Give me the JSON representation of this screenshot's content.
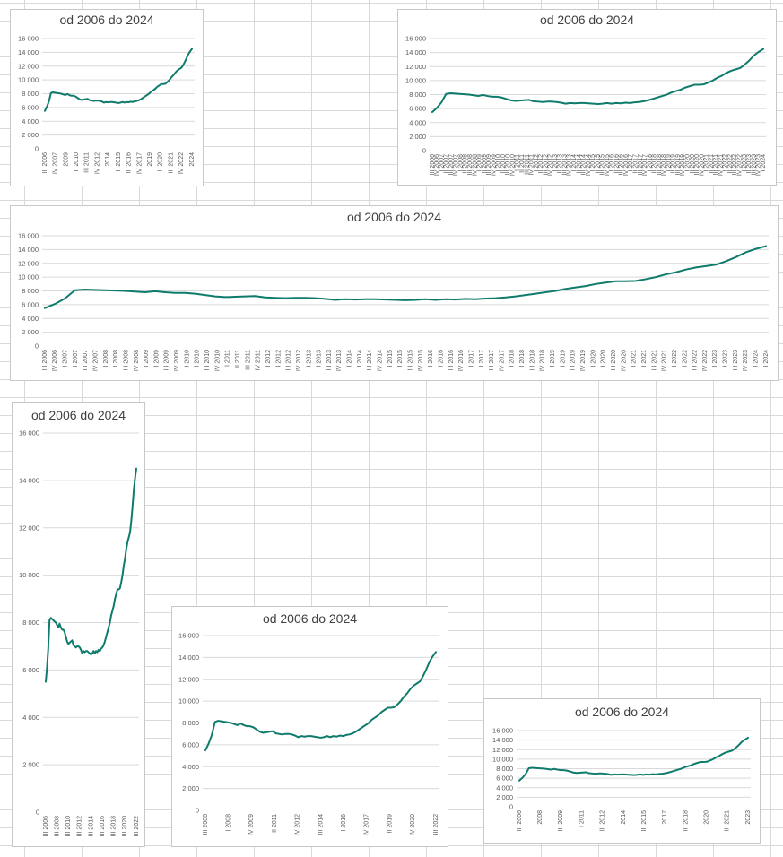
{
  "chart_data": [
    {
      "type": "line",
      "title": "od 2006 do 2024",
      "xlabel": "",
      "ylabel": "",
      "ylim": [
        0,
        16000
      ],
      "yticks": [
        "0",
        "2 000",
        "4 000",
        "6 000",
        "8 000",
        "10 000",
        "12 000",
        "14 000",
        "16 000"
      ],
      "grid": true,
      "x_tick_labels": [
        "III 2006",
        "IV 2007",
        "I 2009",
        "II 2010",
        "III 2011",
        "IV 2012",
        "I 2014",
        "II 2015",
        "III 2016",
        "IV 2017",
        "I 2019",
        "II 2020",
        "III 2021",
        "IV 2022",
        "I 2024"
      ],
      "series_color": "#0f7b6c"
    },
    {
      "type": "line",
      "title": "od 2006 do 2024",
      "xlabel": "",
      "ylabel": "",
      "ylim": [
        0,
        16000
      ],
      "yticks": [
        "0",
        "2 000",
        "4 000",
        "6 000",
        "8 000",
        "10 000",
        "12 000",
        "14 000",
        "16 000"
      ],
      "grid": true,
      "x_tick_labels": [
        "III 2006",
        "IV 2006",
        "I 2007",
        "II 2007",
        "III 2007",
        "IV 2007",
        "I 2008",
        "II 2008",
        "III 2008",
        "IV 2008",
        "I 2009",
        "II 2009",
        "III 2009",
        "IV 2009",
        "I 2010",
        "II 2010",
        "III 2010",
        "IV 2010",
        "I 2011",
        "II 2011",
        "III 2011",
        "IV 2011",
        "I 2012",
        "II 2012",
        "III 2012",
        "IV 2012",
        "I 2013",
        "II 2013",
        "III 2013",
        "IV 2013",
        "I 2014",
        "II 2014",
        "III 2014",
        "IV 2014",
        "I 2015",
        "II 2015",
        "III 2015",
        "IV 2015",
        "I 2016",
        "II 2016",
        "III 2016",
        "IV 2016",
        "I 2017",
        "II 2017",
        "III 2017",
        "IV 2017",
        "I 2018",
        "II 2018",
        "III 2018",
        "IV 2018",
        "I 2019",
        "II 2019",
        "III 2019",
        "IV 2019",
        "I 2020",
        "II 2020",
        "III 2020",
        "IV 2020",
        "I 2021",
        "II 2021",
        "III 2021",
        "IV 2021",
        "I 2022",
        "II 2022",
        "III 2022",
        "IV 2022",
        "I 2023",
        "II 2023",
        "III 2023",
        "IV 2023",
        "I 2024"
      ],
      "series_color": "#0f7b6c"
    },
    {
      "type": "line",
      "title": "od 2006 do 2024",
      "xlabel": "",
      "ylabel": "",
      "ylim": [
        0,
        16000
      ],
      "yticks": [
        "0",
        "2 000",
        "4 000",
        "6 000",
        "8 000",
        "10 000",
        "12 000",
        "14 000",
        "16 000"
      ],
      "grid": true,
      "x_tick_labels": [
        "III 2006",
        "IV 2006",
        "I 2007",
        "II 2007",
        "III 2007",
        "IV 2007",
        "I 2008",
        "II 2008",
        "III 2008",
        "IV 2008",
        "I 2009",
        "II 2009",
        "III 2009",
        "IV 2009",
        "I 2010",
        "II 2010",
        "III 2010",
        "IV 2010",
        "I 2011",
        "II 2011",
        "III 2011",
        "IV 2011",
        "I 2012",
        "II 2012",
        "III 2012",
        "IV 2012",
        "I 2013",
        "II 2013",
        "III 2013",
        "IV 2013",
        "I 2014",
        "II 2014",
        "III 2014",
        "IV 2014",
        "I 2015",
        "II 2015",
        "III 2015",
        "IV 2015",
        "I 2016",
        "II 2016",
        "III 2016",
        "IV 2016",
        "I 2017",
        "II 2017",
        "III 2017",
        "IV 2017",
        "I 2018",
        "II 2018",
        "III 2018",
        "IV 2018",
        "I 2019",
        "II 2019",
        "III 2019",
        "IV 2019",
        "I 2020",
        "II 2020",
        "III 2020",
        "IV 2020",
        "I 2021",
        "II 2021",
        "III 2021",
        "IV 2021",
        "I 2022",
        "II 2022",
        "III 2022",
        "IV 2022",
        "I 2023",
        "II 2023",
        "III 2023",
        "IV 2023",
        "I 2024",
        "II 2024"
      ],
      "series_color": "#0f7b6c"
    },
    {
      "type": "line",
      "title": "od 2006 do 2024",
      "xlabel": "",
      "ylabel": "",
      "ylim": [
        0,
        16000
      ],
      "yticks": [
        "0",
        "2 000",
        "4 000",
        "6 000",
        "8 000",
        "10 000",
        "12 000",
        "14 000",
        "16 000"
      ],
      "grid": true,
      "x_tick_labels": [
        "III 2006",
        "III 2008",
        "III 2010",
        "III 2012",
        "III 2014",
        "III 2016",
        "III 2018",
        "III 2020",
        "III 2022"
      ],
      "series_color": "#0f7b6c"
    },
    {
      "type": "line",
      "title": "od 2006 do 2024",
      "xlabel": "",
      "ylabel": "",
      "ylim": [
        0,
        16000
      ],
      "yticks": [
        "0",
        "2 000",
        "4 000",
        "6 000",
        "8 000",
        "10 000",
        "12 000",
        "14 000",
        "16 000"
      ],
      "grid": true,
      "x_tick_labels": [
        "III 2006",
        "I 2008",
        "IV 2009",
        "II 2011",
        "IV 2012",
        "III 2014",
        "I 2016",
        "IV 2017",
        "II 2019",
        "IV 2020",
        "III 2022"
      ],
      "series_color": "#0f7b6c"
    },
    {
      "type": "line",
      "title": "od 2006 do 2024",
      "xlabel": "",
      "ylabel": "",
      "ylim": [
        0,
        16000
      ],
      "yticks": [
        "0",
        "2 000",
        "4 000",
        "6 000",
        "8 000",
        "10 000",
        "12 000",
        "14 000",
        "16 000"
      ],
      "grid": true,
      "x_tick_labels": [
        "III 2006",
        "I 2008",
        "III 2009",
        "I 2011",
        "III 2012",
        "I 2014",
        "III 2015",
        "I 2017",
        "III 2018",
        "I 2020",
        "III 2021",
        "I 2023"
      ],
      "series_color": "#0f7b6c"
    }
  ],
  "series_values": [
    5500,
    6100,
    6900,
    8100,
    8200,
    8150,
    8100,
    8050,
    8000,
    7900,
    7800,
    7950,
    7800,
    7700,
    7700,
    7600,
    7400,
    7200,
    7100,
    7150,
    7200,
    7250,
    7050,
    7000,
    6950,
    7000,
    7000,
    6950,
    6850,
    6700,
    6800,
    6750,
    6800,
    6800,
    6750,
    6700,
    6650,
    6700,
    6800,
    6700,
    6800,
    6750,
    6850,
    6800,
    6900,
    6950,
    7050,
    7200,
    7400,
    7600,
    7800,
    8000,
    8300,
    8500,
    8700,
    9000,
    9200,
    9400,
    9400,
    9450,
    9700,
    10000,
    10400,
    10700,
    11100,
    11400,
    11600,
    11800,
    12300,
    12900,
    13600,
    14100,
    14500
  ]
}
